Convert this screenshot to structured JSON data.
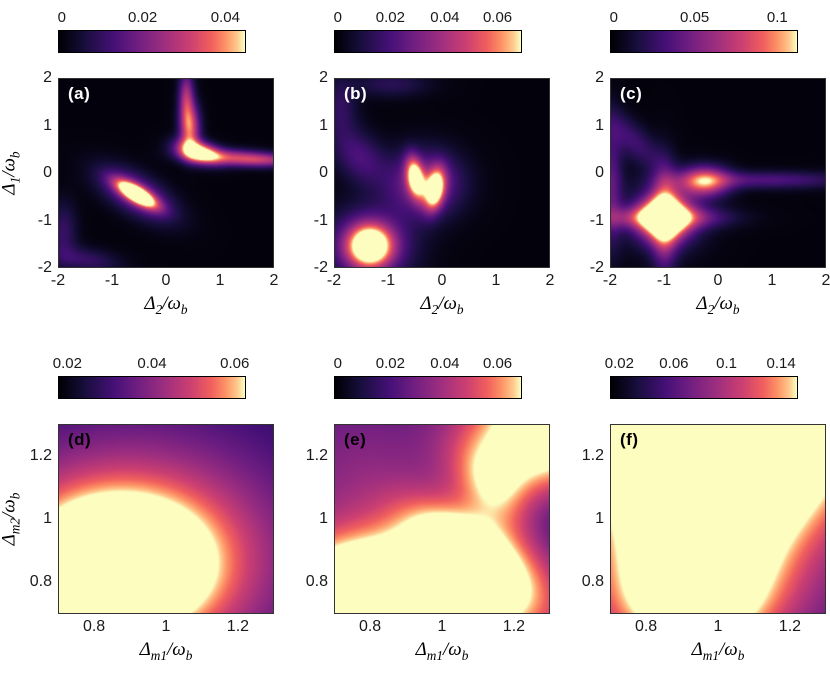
{
  "figure": {
    "background": "#ffffff",
    "colormap": [
      {
        "t": 0,
        "c": "#000004"
      },
      {
        "t": 0.14,
        "c": "#180f3e"
      },
      {
        "t": 0.29,
        "c": "#451077"
      },
      {
        "t": 0.43,
        "c": "#721f81"
      },
      {
        "t": 0.57,
        "c": "#9f2f7f"
      },
      {
        "t": 0.71,
        "c": "#cd4071"
      },
      {
        "t": 0.82,
        "c": "#f1605d"
      },
      {
        "t": 0.9,
        "c": "#fd9567"
      },
      {
        "t": 0.96,
        "c": "#fec98d"
      },
      {
        "t": 1,
        "c": "#fcfdbf"
      }
    ]
  },
  "chart_data": [
    {
      "id": "a",
      "label": "(a)",
      "label_color": "#ffffff",
      "type": "heatmap",
      "x_axis": {
        "label": {
          "sym": "Δ",
          "sub": "2",
          "mid": "/ω",
          "sub2": "b"
        },
        "range": [
          -2,
          2
        ],
        "ticks": [
          {
            "label": "-2",
            "pos": 0
          },
          {
            "label": "-1",
            "pos": 25
          },
          {
            "label": "0",
            "pos": 50
          },
          {
            "label": "1",
            "pos": 75
          },
          {
            "label": "2",
            "pos": 100
          }
        ]
      },
      "y_axis": {
        "label": {
          "sym": "Δ",
          "sub": "1",
          "mid": "/ω",
          "sub2": "b"
        },
        "range": [
          -2,
          2
        ],
        "ticks": [
          {
            "label": "2",
            "pos": 0
          },
          {
            "label": "1",
            "pos": 25
          },
          {
            "label": "0",
            "pos": 50
          },
          {
            "label": "-1",
            "pos": 75
          },
          {
            "label": "-2",
            "pos": 100
          }
        ]
      },
      "colorbar": {
        "min": 0,
        "max": 0.045,
        "ticks": [
          {
            "label": "0",
            "pos": 2
          },
          {
            "label": "0.02",
            "pos": 45
          },
          {
            "label": "0.04",
            "pos": 89
          }
        ]
      },
      "field": {
        "base": 0.02,
        "gaussians": [
          [
            -0.55,
            -0.45,
            0.3,
            0.11,
            1.3,
            -35
          ],
          [
            -0.55,
            -0.45,
            0.55,
            0.26,
            0.5,
            -35
          ],
          [
            0.38,
            1.6,
            0.1,
            0.4,
            0.55,
            0
          ],
          [
            0.45,
            0.95,
            0.13,
            0.35,
            0.75,
            0
          ],
          [
            0.6,
            0.45,
            0.28,
            0.15,
            1.1,
            -18
          ],
          [
            1.25,
            0.33,
            0.55,
            0.12,
            0.6,
            -3
          ],
          [
            1.95,
            0.27,
            0.45,
            0.1,
            0.35,
            0
          ],
          [
            -1.5,
            -1.85,
            0.45,
            0.18,
            0.22,
            -10
          ],
          [
            -1.92,
            -1.25,
            0.18,
            0.45,
            0.22,
            0
          ]
        ]
      }
    },
    {
      "id": "b",
      "label": "(b)",
      "label_color": "#ffffff",
      "type": "heatmap",
      "x_axis": {
        "label": {
          "sym": "Δ",
          "sub": "2",
          "mid": "/ω",
          "sub2": "b"
        },
        "range": [
          -2,
          2
        ],
        "ticks": [
          {
            "label": "-2",
            "pos": 0
          },
          {
            "label": "-1",
            "pos": 25
          },
          {
            "label": "0",
            "pos": 50
          },
          {
            "label": "1",
            "pos": 75
          },
          {
            "label": "2",
            "pos": 100
          }
        ]
      },
      "y_axis": {
        "range": [
          -2,
          2
        ],
        "ticks": [
          {
            "label": "2",
            "pos": 0
          },
          {
            "label": "1",
            "pos": 25
          },
          {
            "label": "0",
            "pos": 50
          },
          {
            "label": "-1",
            "pos": 75
          },
          {
            "label": "-2",
            "pos": 100
          }
        ]
      },
      "colorbar": {
        "min": 0,
        "max": 0.07,
        "ticks": [
          {
            "label": "0",
            "pos": 2
          },
          {
            "label": "0.02",
            "pos": 30
          },
          {
            "label": "0.04",
            "pos": 59
          },
          {
            "label": "0.06",
            "pos": 87
          }
        ]
      },
      "field": {
        "base": 0.02,
        "gaussians": [
          [
            -1.35,
            -1.55,
            0.28,
            0.3,
            1.15,
            0
          ],
          [
            -1.35,
            -1.55,
            0.55,
            0.55,
            0.45,
            0
          ],
          [
            -0.5,
            -0.1,
            0.11,
            0.3,
            0.95,
            8
          ],
          [
            -0.13,
            -0.35,
            0.12,
            0.3,
            1.05,
            -8
          ],
          [
            -0.32,
            -0.22,
            0.48,
            0.48,
            0.5,
            0
          ],
          [
            -1.55,
            0.35,
            0.3,
            0.45,
            0.28,
            30
          ],
          [
            -1.9,
            1.4,
            0.22,
            0.45,
            0.2,
            0
          ],
          [
            -0.95,
            1.9,
            0.5,
            0.2,
            0.18,
            0
          ]
        ]
      }
    },
    {
      "id": "c",
      "label": "(c)",
      "label_color": "#ffffff",
      "type": "heatmap",
      "x_axis": {
        "label": {
          "sym": "Δ",
          "sub": "2",
          "mid": "/ω",
          "sub2": "b"
        },
        "range": [
          -2,
          2
        ],
        "ticks": [
          {
            "label": "-2",
            "pos": 0
          },
          {
            "label": "-1",
            "pos": 25
          },
          {
            "label": "0",
            "pos": 50
          },
          {
            "label": "1",
            "pos": 75
          },
          {
            "label": "2",
            "pos": 100
          }
        ]
      },
      "y_axis": {
        "range": [
          -2,
          2
        ],
        "ticks": [
          {
            "label": "2",
            "pos": 0
          },
          {
            "label": "1",
            "pos": 25
          },
          {
            "label": "0",
            "pos": 50
          },
          {
            "label": "-1",
            "pos": 75
          },
          {
            "label": "-2",
            "pos": 100
          }
        ]
      },
      "colorbar": {
        "min": 0,
        "max": 0.115,
        "ticks": [
          {
            "label": "0",
            "pos": 2
          },
          {
            "label": "0.05",
            "pos": 45
          },
          {
            "label": "0.1",
            "pos": 89
          }
        ]
      },
      "field": {
        "base": 0.02,
        "gaussians": [
          [
            -1.0,
            -0.95,
            0.3,
            0.3,
            1.25,
            0
          ],
          [
            -1.0,
            -0.95,
            0.75,
            0.16,
            0.55,
            0
          ],
          [
            -1.0,
            -0.95,
            0.16,
            0.75,
            0.55,
            0
          ],
          [
            -1.0,
            -0.95,
            0.5,
            0.5,
            0.35,
            45
          ],
          [
            -0.25,
            -0.18,
            0.32,
            0.22,
            0.8,
            0
          ],
          [
            0.9,
            -0.15,
            1.1,
            0.13,
            0.3,
            0
          ],
          [
            -2.0,
            -0.3,
            0.15,
            0.9,
            0.35,
            0
          ],
          [
            -1.6,
            0.7,
            0.22,
            0.55,
            0.25,
            40
          ]
        ]
      }
    },
    {
      "id": "d",
      "label": "(d)",
      "label_color": "#000000",
      "type": "heatmap",
      "x_axis": {
        "label": {
          "sym": "Δ",
          "sub": "m1",
          "mid": "/ω",
          "sub2": "b"
        },
        "range": [
          0.7,
          1.3
        ],
        "ticks": [
          {
            "label": "0.8",
            "pos": 16.7
          },
          {
            "label": "1",
            "pos": 50
          },
          {
            "label": "1.2",
            "pos": 83.3
          }
        ]
      },
      "y_axis": {
        "label": {
          "sym": "Δ",
          "sub": "m2",
          "mid": "/ω",
          "sub2": "b"
        },
        "range": [
          0.7,
          1.3
        ],
        "ticks": [
          {
            "label": "1.2",
            "pos": 16.7
          },
          {
            "label": "1",
            "pos": 50
          },
          {
            "label": "0.8",
            "pos": 83.3
          }
        ]
      },
      "colorbar": {
        "min": 0.02,
        "max": 0.065,
        "ticks": [
          {
            "label": "0.02",
            "pos": 5
          },
          {
            "label": "0.04",
            "pos": 50
          },
          {
            "label": "0.06",
            "pos": 94
          }
        ]
      },
      "field": {
        "base": 0.08,
        "gaussians": [
          [
            0.86,
            0.85,
            0.17,
            0.14,
            1.15,
            0
          ],
          [
            0.89,
            0.87,
            0.3,
            0.26,
            0.6,
            0
          ],
          [
            0.95,
            0.92,
            0.45,
            0.4,
            0.25,
            0
          ]
        ]
      }
    },
    {
      "id": "e",
      "label": "(e)",
      "label_color": "#000000",
      "type": "heatmap",
      "x_axis": {
        "label": {
          "sym": "Δ",
          "sub": "m1",
          "mid": "/ω",
          "sub2": "b"
        },
        "range": [
          0.7,
          1.3
        ],
        "ticks": [
          {
            "label": "0.8",
            "pos": 16.7
          },
          {
            "label": "1",
            "pos": 50
          },
          {
            "label": "1.2",
            "pos": 83.3
          }
        ]
      },
      "y_axis": {
        "range": [
          0.7,
          1.3
        ],
        "ticks": [
          {
            "label": "1.2",
            "pos": 16.7
          },
          {
            "label": "1",
            "pos": 50
          },
          {
            "label": "0.8",
            "pos": 83.3
          }
        ]
      },
      "colorbar": {
        "min": 0,
        "max": 0.07,
        "ticks": [
          {
            "label": "0",
            "pos": 2
          },
          {
            "label": "0.02",
            "pos": 30
          },
          {
            "label": "0.04",
            "pos": 59
          },
          {
            "label": "0.06",
            "pos": 87
          }
        ]
      },
      "field": {
        "base": 0.12,
        "gaussians": [
          [
            0.92,
            0.71,
            0.3,
            0.13,
            1.15,
            0
          ],
          [
            0.78,
            0.76,
            0.18,
            0.14,
            0.7,
            15
          ],
          [
            1.07,
            0.9,
            0.14,
            0.075,
            0.8,
            -38
          ],
          [
            1.18,
            1.07,
            0.13,
            0.075,
            0.85,
            -55
          ],
          [
            1.28,
            1.27,
            0.16,
            0.12,
            1.05,
            -45
          ],
          [
            1.24,
            1.03,
            0.1,
            0.07,
            -0.45,
            -50
          ],
          [
            0.78,
            1.12,
            0.28,
            0.28,
            0.38,
            0
          ]
        ]
      }
    },
    {
      "id": "f",
      "label": "(f)",
      "label_color": "#000000",
      "type": "heatmap",
      "x_axis": {
        "label": {
          "sym": "Δ",
          "sub": "m1",
          "mid": "/ω",
          "sub2": "b"
        },
        "range": [
          0.7,
          1.3
        ],
        "ticks": [
          {
            "label": "0.8",
            "pos": 16.7
          },
          {
            "label": "1",
            "pos": 50
          },
          {
            "label": "1.2",
            "pos": 83.3
          }
        ]
      },
      "y_axis": {
        "range": [
          0.7,
          1.3
        ],
        "ticks": [
          {
            "label": "1.2",
            "pos": 16.7
          },
          {
            "label": "1",
            "pos": 50
          },
          {
            "label": "0.8",
            "pos": 83.3
          }
        ]
      },
      "colorbar": {
        "min": 0.02,
        "max": 0.145,
        "ticks": [
          {
            "label": "0.02",
            "pos": 5
          },
          {
            "label": "0.06",
            "pos": 34
          },
          {
            "label": "0.1",
            "pos": 62
          },
          {
            "label": "0.14",
            "pos": 91
          }
        ]
      },
      "field": {
        "base": 0.12,
        "gaussians": [
          [
            0.97,
            1.27,
            0.22,
            0.26,
            1.1,
            0
          ],
          [
            0.94,
            0.95,
            0.14,
            0.28,
            0.8,
            0
          ],
          [
            0.98,
            1.1,
            0.38,
            0.45,
            0.5,
            0
          ],
          [
            1.18,
            1.28,
            0.22,
            0.18,
            0.5,
            0
          ],
          [
            0.9,
            0.74,
            0.2,
            0.12,
            0.35,
            0
          ]
        ]
      }
    }
  ]
}
